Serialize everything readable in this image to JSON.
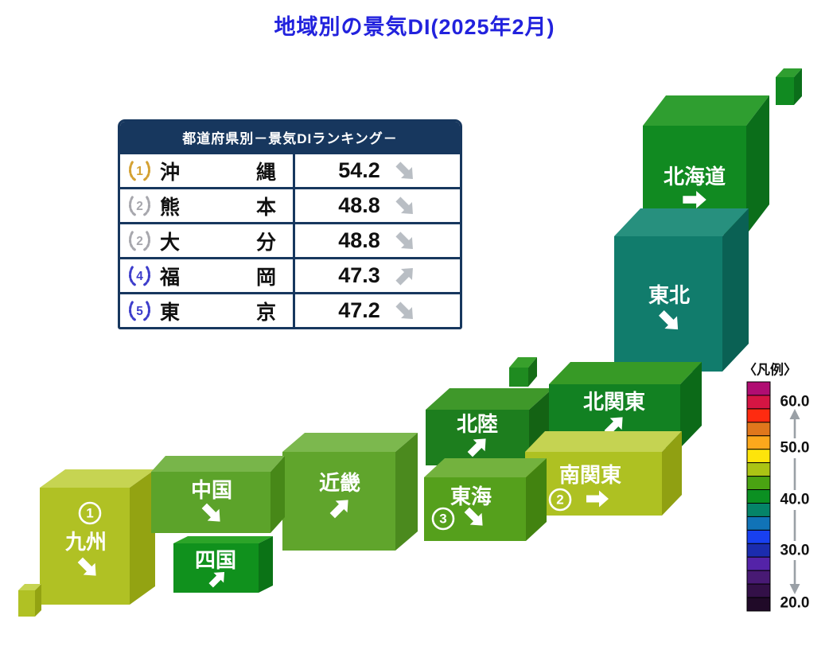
{
  "title": "地域別の景気DI(2025年2月)",
  "table": {
    "header": "都道府県別－景気DIランキング－",
    "rows": [
      {
        "rank": "1",
        "name": "沖縄",
        "value": "54.2",
        "trend": "down-right",
        "badge_color": "#D4A132"
      },
      {
        "rank": "2",
        "name": "熊本",
        "value": "48.8",
        "trend": "down-right",
        "badge_color": "#A7A7AD"
      },
      {
        "rank": "2",
        "name": "大分",
        "value": "48.8",
        "trend": "down-right",
        "badge_color": "#A7A7AD"
      },
      {
        "rank": "4",
        "name": "福岡",
        "value": "47.3",
        "trend": "up-right",
        "badge_color": "#3D3DCB"
      },
      {
        "rank": "5",
        "name": "東京",
        "value": "47.2",
        "trend": "down-right",
        "badge_color": "#3D3DCB"
      }
    ]
  },
  "map": {
    "regions": {
      "hokkaido": {
        "label": "北海道",
        "trend": "right",
        "front": "#118A21",
        "top": "#2F9E30",
        "side": "#0B6E1A"
      },
      "tohoku": {
        "label": "東北",
        "trend": "down-right",
        "front": "#117C6C",
        "top": "#27907E",
        "side": "#0A6154"
      },
      "kitakanto": {
        "label": "北関東",
        "trend": "up-right",
        "front": "#128122",
        "top": "#379A26",
        "side": "#0C6A18"
      },
      "minamikanto": {
        "label": "南関東",
        "rank": "2",
        "trend": "right",
        "front": "#AEC122",
        "top": "#C5D352",
        "side": "#90A012"
      },
      "hokuriku": {
        "label": "北陸",
        "trend": "up-right",
        "front": "#1D7E1E",
        "top": "#3F982A",
        "side": "#146314"
      },
      "tokai": {
        "label": "東海",
        "rank": "3",
        "trend": "down-right",
        "front": "#55A01C",
        "top": "#73B23E",
        "side": "#428310"
      },
      "kinki": {
        "label": "近畿",
        "trend": "up-right",
        "front": "#60A52C",
        "top": "#7CB84E",
        "side": "#4B8A1E"
      },
      "chugoku": {
        "label": "中国",
        "trend": "down-right",
        "front": "#5CA32A",
        "top": "#78B54A",
        "side": "#478818"
      },
      "shikoku": {
        "label": "四国",
        "trend": "up-right",
        "front": "#10911D",
        "top": "#2CA428",
        "side": "#0B7316"
      },
      "kyushu": {
        "label": "九州",
        "rank": "1",
        "trend": "down-right",
        "front": "#B0C124",
        "top": "#C6D452",
        "side": "#93A312"
      }
    },
    "islands": {
      "hokkaido_island": {
        "front": "#118A21",
        "top": "#2F9E30",
        "side": "#0B6E1A"
      },
      "sado": {
        "front": "#1F8B20",
        "top": "#38A02C",
        "side": "#156C16"
      },
      "okinawa": {
        "front": "#B0C124",
        "top": "#C6D452",
        "side": "#93A312"
      }
    }
  },
  "legend": {
    "title": "〈凡例〉",
    "colors": [
      "#B00D72",
      "#D51543",
      "#FE2B10",
      "#E0771C",
      "#FCA81C",
      "#FDE40B",
      "#ABC414",
      "#4AA312",
      "#0B9022",
      "#058468",
      "#1173B7",
      "#1840F0",
      "#1B2CAE",
      "#5423A8",
      "#481A74",
      "#331048",
      "#200A28"
    ],
    "ticks": [
      "60.0",
      "50.0",
      "40.0",
      "30.0",
      "20.0"
    ]
  },
  "chart_data": {
    "type": "heatmap",
    "title": "地域別の景気DI(2025年2月)",
    "subtitle": "都道府県別－景気DIランキング－",
    "legend": {
      "label": "〈凡例〉",
      "scale_ticks": [
        60.0,
        50.0,
        40.0,
        30.0,
        20.0
      ],
      "scale_range": [
        20.0,
        62.5
      ],
      "band_width": 2.5,
      "bands_top_to_bottom": 17
    },
    "regions": [
      {
        "name": "北海道",
        "trend": "→",
        "di_from_color": "40.0-42.5"
      },
      {
        "name": "東北",
        "trend": "↘",
        "di_from_color": "37.5-40.0"
      },
      {
        "name": "北関東",
        "trend": "↗",
        "di_from_color": "40.0-42.5"
      },
      {
        "name": "南関東",
        "region_rank": 2,
        "trend": "→",
        "di_from_color": "45.0-47.5"
      },
      {
        "name": "北陸",
        "trend": "↗",
        "di_from_color": "40.0-42.5"
      },
      {
        "name": "東海",
        "region_rank": 3,
        "trend": "↘",
        "di_from_color": "42.5-45.0"
      },
      {
        "name": "近畿",
        "trend": "↗",
        "di_from_color": "42.5-45.0"
      },
      {
        "name": "中国",
        "trend": "↘",
        "di_from_color": "42.5-45.0"
      },
      {
        "name": "四国",
        "trend": "↗",
        "di_from_color": "40.0-42.5"
      },
      {
        "name": "九州",
        "region_rank": 1,
        "trend": "↘",
        "di_from_color": "45.0-47.5"
      }
    ],
    "prefecture_ranking": [
      {
        "rank": 1,
        "prefecture": "沖縄",
        "di": 54.2,
        "trend": "↘"
      },
      {
        "rank": 2,
        "prefecture": "熊本",
        "di": 48.8,
        "trend": "↘"
      },
      {
        "rank": 2,
        "prefecture": "大分",
        "di": 48.8,
        "trend": "↘"
      },
      {
        "rank": 4,
        "prefecture": "福岡",
        "di": 47.3,
        "trend": "↗"
      },
      {
        "rank": 5,
        "prefecture": "東京",
        "di": 47.2,
        "trend": "↘"
      }
    ]
  }
}
